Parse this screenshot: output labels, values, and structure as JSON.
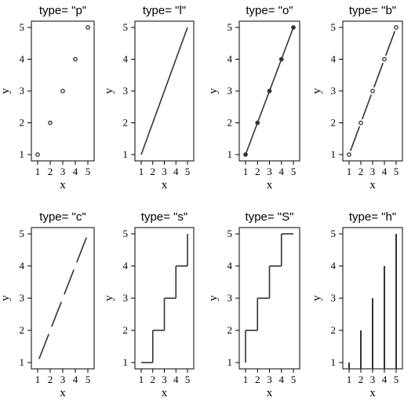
{
  "chart_data": [
    {
      "type": "scatter",
      "title": "type= \"p\"",
      "plot_type": "p",
      "xlabel": "x",
      "ylabel": "y",
      "x": [
        1,
        2,
        3,
        4,
        5
      ],
      "y": [
        1,
        2,
        3,
        4,
        5
      ],
      "xlim": [
        1,
        5
      ],
      "ylim": [
        1,
        5
      ],
      "x_ticks": [
        "1",
        "2",
        "3",
        "4",
        "5"
      ],
      "y_ticks": [
        "1",
        "2",
        "3",
        "4",
        "5"
      ],
      "grid": false
    },
    {
      "type": "line",
      "title": "type= \"l\"",
      "plot_type": "l",
      "xlabel": "x",
      "ylabel": "y",
      "x": [
        1,
        2,
        3,
        4,
        5
      ],
      "y": [
        1,
        2,
        3,
        4,
        5
      ],
      "xlim": [
        1,
        5
      ],
      "ylim": [
        1,
        5
      ],
      "x_ticks": [
        "1",
        "2",
        "3",
        "4",
        "5"
      ],
      "y_ticks": [
        "1",
        "2",
        "3",
        "4",
        "5"
      ],
      "grid": false
    },
    {
      "type": "line",
      "title": "type= \"o\"",
      "plot_type": "o",
      "xlabel": "x",
      "ylabel": "y",
      "x": [
        1,
        2,
        3,
        4,
        5
      ],
      "y": [
        1,
        2,
        3,
        4,
        5
      ],
      "xlim": [
        1,
        5
      ],
      "ylim": [
        1,
        5
      ],
      "x_ticks": [
        "1",
        "2",
        "3",
        "4",
        "5"
      ],
      "y_ticks": [
        "1",
        "2",
        "3",
        "4",
        "5"
      ],
      "grid": false
    },
    {
      "type": "line",
      "title": "type= \"b\"",
      "plot_type": "b",
      "xlabel": "x",
      "ylabel": "y",
      "x": [
        1,
        2,
        3,
        4,
        5
      ],
      "y": [
        1,
        2,
        3,
        4,
        5
      ],
      "xlim": [
        1,
        5
      ],
      "ylim": [
        1,
        5
      ],
      "x_ticks": [
        "1",
        "2",
        "3",
        "4",
        "5"
      ],
      "y_ticks": [
        "1",
        "2",
        "3",
        "4",
        "5"
      ],
      "grid": false
    },
    {
      "type": "line",
      "title": "type= \"c\"",
      "plot_type": "c",
      "xlabel": "x",
      "ylabel": "y",
      "x": [
        1,
        2,
        3,
        4,
        5
      ],
      "y": [
        1,
        2,
        3,
        4,
        5
      ],
      "xlim": [
        1,
        5
      ],
      "ylim": [
        1,
        5
      ],
      "x_ticks": [
        "1",
        "2",
        "3",
        "4",
        "5"
      ],
      "y_ticks": [
        "1",
        "2",
        "3",
        "4",
        "5"
      ],
      "grid": false
    },
    {
      "type": "line",
      "title": "type= \"s\"",
      "plot_type": "s",
      "xlabel": "x",
      "ylabel": "y",
      "x": [
        1,
        2,
        3,
        4,
        5
      ],
      "y": [
        1,
        2,
        3,
        4,
        5
      ],
      "xlim": [
        1,
        5
      ],
      "ylim": [
        1,
        5
      ],
      "x_ticks": [
        "1",
        "2",
        "3",
        "4",
        "5"
      ],
      "y_ticks": [
        "1",
        "2",
        "3",
        "4",
        "5"
      ],
      "grid": false
    },
    {
      "type": "line",
      "title": "type= \"S\"",
      "plot_type": "S",
      "xlabel": "x",
      "ylabel": "y",
      "x": [
        1,
        2,
        3,
        4,
        5
      ],
      "y": [
        1,
        2,
        3,
        4,
        5
      ],
      "xlim": [
        1,
        5
      ],
      "ylim": [
        1,
        5
      ],
      "x_ticks": [
        "1",
        "2",
        "3",
        "4",
        "5"
      ],
      "y_ticks": [
        "1",
        "2",
        "3",
        "4",
        "5"
      ],
      "grid": false
    },
    {
      "type": "bar",
      "title": "type= \"h\"",
      "plot_type": "h",
      "xlabel": "x",
      "ylabel": "y",
      "x": [
        1,
        2,
        3,
        4,
        5
      ],
      "y": [
        1,
        2,
        3,
        4,
        5
      ],
      "xlim": [
        1,
        5
      ],
      "ylim": [
        1,
        5
      ],
      "x_ticks": [
        "1",
        "2",
        "3",
        "4",
        "5"
      ],
      "y_ticks": [
        "1",
        "2",
        "3",
        "4",
        "5"
      ],
      "grid": false
    }
  ]
}
